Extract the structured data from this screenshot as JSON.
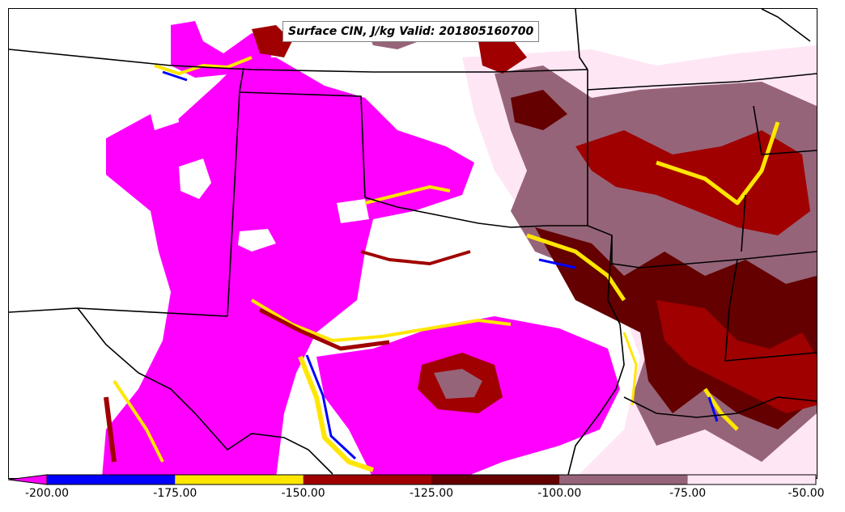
{
  "title": "Surface CIN, J/kg Valid: 201805160700",
  "colorbar": {
    "ticks": [
      "-200.00",
      "-175.00",
      "-150.00",
      "-125.00",
      "-100.00",
      "-75.00",
      "-50.00"
    ],
    "colors": [
      "#ff00ff",
      "#0000ff",
      "#ffe600",
      "#a00000",
      "#640000",
      "#966478",
      "#ffe6f5"
    ],
    "extend": "min"
  },
  "map": {
    "variable": "Surface CIN",
    "units": "J/kg",
    "valid_time": "201805160700",
    "background": "#ffffff",
    "boundary_color": "#000000"
  }
}
